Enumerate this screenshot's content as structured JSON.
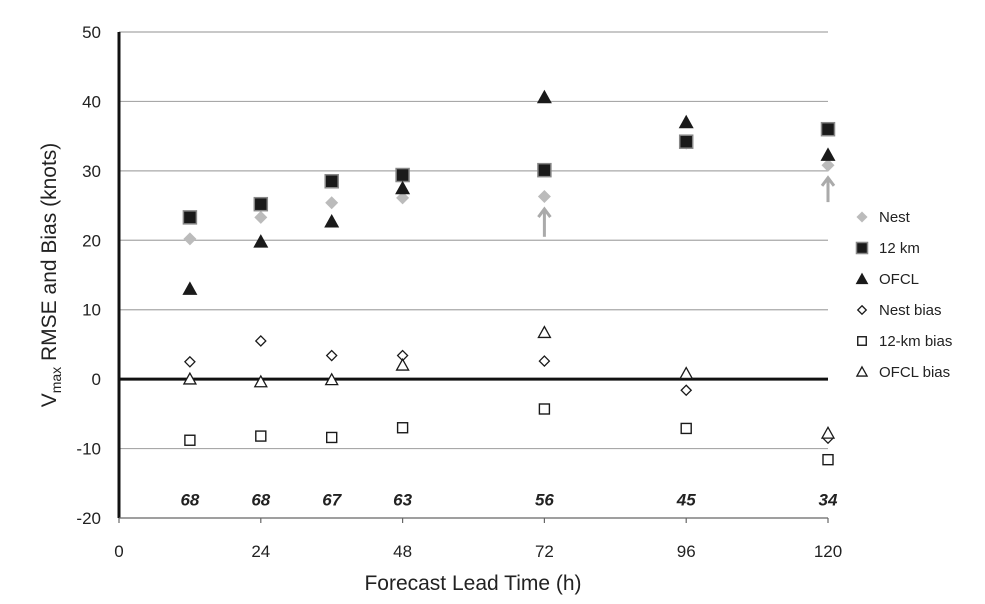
{
  "chart_data": {
    "type": "scatter",
    "title": "",
    "xlabel": "Forecast Lead Time (h)",
    "ylabel": {
      "main": "V",
      "subscript": "max",
      "rest": " RMSE and Bias (knots)"
    },
    "xlim": [
      0,
      120
    ],
    "ylim": [
      -20,
      50
    ],
    "x_ticks": [
      0,
      24,
      48,
      72,
      96,
      120
    ],
    "y_ticks": [
      -20,
      -10,
      0,
      10,
      20,
      30,
      40,
      50
    ],
    "grid": true,
    "legend_position": "right",
    "series": [
      {
        "name": "Nest",
        "marker": "diamond-filled",
        "color": "#bbbbbb",
        "x": [
          12,
          24,
          36,
          48,
          72,
          96,
          120
        ],
        "y": [
          20.2,
          23.3,
          25.4,
          26.1,
          26.3,
          34.0,
          30.8
        ]
      },
      {
        "name": "12 km",
        "marker": "square-filled",
        "color": "#1a1a1a",
        "x": [
          12,
          24,
          36,
          48,
          72,
          96,
          120
        ],
        "y": [
          23.3,
          25.2,
          28.5,
          29.4,
          30.1,
          34.2,
          36.0
        ]
      },
      {
        "name": "OFCL",
        "marker": "triangle-filled",
        "color": "#1a1a1a",
        "x": [
          12,
          24,
          36,
          48,
          72,
          96,
          120
        ],
        "y": [
          13.0,
          19.8,
          22.7,
          27.5,
          40.6,
          37.0,
          32.3
        ]
      },
      {
        "name": "Nest bias",
        "marker": "diamond-open",
        "color": "#1a1a1a",
        "x": [
          12,
          24,
          36,
          48,
          72,
          96,
          120
        ],
        "y": [
          2.5,
          5.5,
          3.4,
          3.4,
          2.6,
          -1.6,
          -8.5
        ]
      },
      {
        "name": "12-km bias",
        "marker": "square-open",
        "color": "#1a1a1a",
        "x": [
          12,
          24,
          36,
          48,
          72,
          96,
          120
        ],
        "y": [
          -8.8,
          -8.2,
          -8.4,
          -7.0,
          -4.3,
          -7.1,
          -11.6
        ]
      },
      {
        "name": "OFCL bias",
        "marker": "triangle-open",
        "color": "#1a1a1a",
        "x": [
          12,
          24,
          36,
          48,
          72,
          96,
          120
        ],
        "y": [
          0.0,
          -0.4,
          -0.1,
          2.0,
          6.7,
          0.8,
          -7.8
        ]
      }
    ],
    "annotations": {
      "sample_counts": [
        {
          "x": 12,
          "label": "68"
        },
        {
          "x": 24,
          "label": "68"
        },
        {
          "x": 36,
          "label": "67"
        },
        {
          "x": 48,
          "label": "63"
        },
        {
          "x": 72,
          "label": "56"
        },
        {
          "x": 96,
          "label": "45"
        },
        {
          "x": 120,
          "label": "34"
        }
      ],
      "sample_count_y": -17.3,
      "arrows": [
        {
          "x": 72,
          "y_from": 20.5,
          "y_to": 24.5,
          "color": "#aaaaaa"
        },
        {
          "x": 120,
          "y_from": 25.5,
          "y_to": 29.0,
          "color": "#aaaaaa"
        }
      ]
    }
  }
}
